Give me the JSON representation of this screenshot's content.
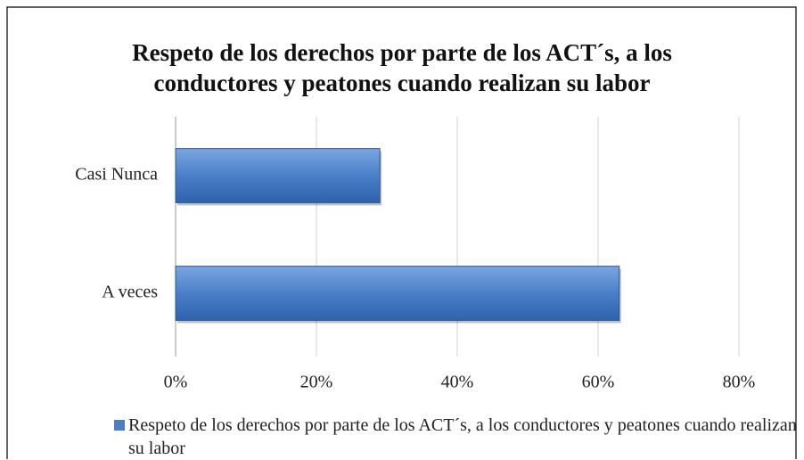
{
  "chart_data": {
    "type": "bar",
    "orientation": "horizontal",
    "title": "Respeto de los derechos por parte de los ACT´s, a los conductores y peatones cuando realizan su labor",
    "categories": [
      "A veces",
      "Casi Nunca"
    ],
    "series": [
      {
        "name": "Respeto de los derechos por parte de los ACT´s, a los conductores y peatones cuando realizan su labor",
        "color": "#4a7fc8",
        "values": [
          63,
          29
        ]
      }
    ],
    "xlim": [
      0,
      80
    ],
    "xticks": [
      {
        "value": 0,
        "label": "0%"
      },
      {
        "value": 20,
        "label": "20%"
      },
      {
        "value": 40,
        "label": "40%"
      },
      {
        "value": 60,
        "label": "60%"
      },
      {
        "value": 80,
        "label": "80%"
      }
    ],
    "grid": true,
    "legend": "bottom"
  }
}
